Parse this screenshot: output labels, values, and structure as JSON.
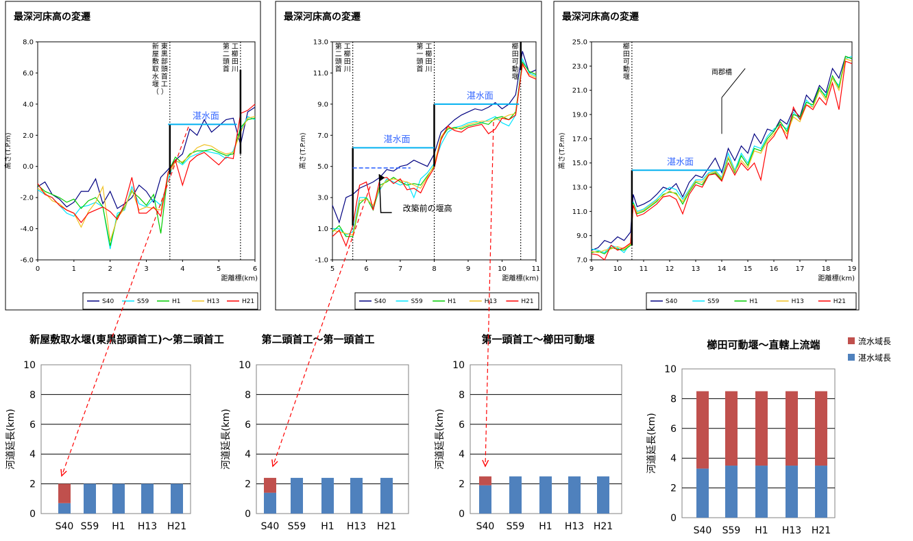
{
  "line_charts": {
    "legend": [
      "S40",
      "S59",
      "H1",
      "H13",
      "H21"
    ],
    "series_colors": [
      "#000080",
      "#00e5ff",
      "#00cc00",
      "#f0c020",
      "#ff0000"
    ]
  },
  "bar_charts": {
    "legend": [
      {
        "label": "流水域長",
        "color": "#c0504d"
      },
      {
        "label": "湛水域長",
        "color": "#4f81bd"
      }
    ],
    "annotation_arrow_color": "#ff0000"
  },
  "chart_data": [
    {
      "type": "line",
      "title": "最深河床高の変遷",
      "xlabel": "距離標(km)",
      "ylabel": "高さ(T.P.m)",
      "xlim": [
        0,
        6
      ],
      "ylim": [
        -6.0,
        8.0
      ],
      "xticks": [
        "0",
        "1",
        "2",
        "3",
        "4",
        "5",
        "6"
      ],
      "yticks": [
        "-6.0",
        "-4.0",
        "-2.0",
        "0.0",
        "2.0",
        "4.0",
        "6.0",
        "8.0"
      ],
      "x": [
        0,
        0.2,
        0.4,
        0.6,
        0.8,
        1.0,
        1.2,
        1.4,
        1.6,
        1.8,
        2.0,
        2.2,
        2.4,
        2.6,
        2.8,
        3.0,
        3.2,
        3.4,
        3.6,
        3.8,
        4.0,
        4.2,
        4.4,
        4.6,
        4.8,
        5.0,
        5.2,
        5.4,
        5.6,
        5.8,
        6.0
      ],
      "series": [
        {
          "name": "S40",
          "values": [
            -1.3,
            -1.0,
            -1.8,
            -2.1,
            -2.6,
            -2.3,
            -1.6,
            -1.6,
            -0.8,
            -2.4,
            -1.6,
            -2.7,
            -2.4,
            -2.0,
            -1.2,
            -1.6,
            -2.3,
            -0.7,
            -0.2,
            0.4,
            0.8,
            2.4,
            2.0,
            3.0,
            2.2,
            2.6,
            3.0,
            3.1,
            1.4,
            3.5,
            3.8
          ]
        },
        {
          "name": "S59",
          "values": [
            -1.5,
            -1.8,
            -2.0,
            -2.5,
            -3.0,
            -3.2,
            -2.6,
            -2.5,
            -2.3,
            -2.6,
            -5.3,
            -3.0,
            -2.8,
            -1.3,
            -2.4,
            -2.6,
            -2.1,
            -2.5,
            -0.8,
            0.4,
            0.1,
            0.6,
            0.8,
            1.0,
            0.9,
            0.8,
            0.5,
            1.0,
            2.3,
            3.2,
            3.0
          ]
        },
        {
          "name": "H1",
          "values": [
            -1.2,
            -1.6,
            -1.8,
            -2.0,
            -2.3,
            -2.1,
            -2.7,
            -2.2,
            -2.0,
            -2.6,
            -5.1,
            -3.2,
            -2.6,
            -1.6,
            -2.0,
            -2.5,
            -1.8,
            -4.3,
            -0.4,
            0.6,
            0.2,
            0.8,
            1.0,
            1.0,
            1.1,
            0.9,
            0.7,
            0.8,
            2.5,
            3.0,
            3.1
          ]
        },
        {
          "name": "H13",
          "values": [
            -1.4,
            -1.7,
            -2.2,
            -2.4,
            -2.8,
            -3.0,
            -3.9,
            -2.9,
            -2.3,
            -1.3,
            -4.8,
            -3.3,
            -2.7,
            -1.5,
            -2.8,
            -2.6,
            -2.7,
            -2.8,
            -0.6,
            0.3,
            0.3,
            0.7,
            1.2,
            1.4,
            1.3,
            1.0,
            0.8,
            0.9,
            2.2,
            3.1,
            3.2
          ]
        },
        {
          "name": "H21",
          "values": [
            -1.1,
            -1.8,
            -2.0,
            -2.5,
            -2.8,
            -3.0,
            -3.6,
            -3.0,
            -2.8,
            -2.6,
            -2.9,
            -3.4,
            -2.4,
            -0.7,
            -3.0,
            -3.0,
            -2.6,
            -3.2,
            -0.4,
            0.4,
            -1.2,
            0.3,
            0.7,
            0.9,
            0.5,
            0.1,
            0.6,
            0.5,
            3.4,
            3.6,
            4.0
          ]
        }
      ],
      "water_level": {
        "label": "湛水面",
        "x_start": 3.6,
        "x_end": 5.5,
        "y": 2.7
      },
      "weirs": [
        {
          "label": [
            "新",
            "屋",
            "敷",
            "取",
            "水",
            "堰",
            "（",
            "東",
            "黒",
            "部",
            "頭",
            "首",
            "工",
            "）"
          ],
          "x": 3.65,
          "y_bottom": -0.5,
          "y_top": 2.7
        },
        {
          "label": [
            "第",
            "二",
            "頭",
            "首",
            "工",
            "櫛",
            "田",
            "川"
          ],
          "x": 5.6,
          "y_bottom": 0.8,
          "y_top": 6.2
        }
      ]
    },
    {
      "type": "line",
      "title": "最深河床高の変遷",
      "xlabel": "距離標(km)",
      "ylabel": "高さ(T.P.m)",
      "xlim": [
        5,
        11
      ],
      "ylim": [
        -1.0,
        13.0
      ],
      "xticks": [
        "5",
        "6",
        "7",
        "8",
        "9",
        "10",
        "11"
      ],
      "yticks": [
        "-1.0",
        "1.0",
        "3.0",
        "5.0",
        "7.0",
        "9.0",
        "11.0",
        "13.0"
      ],
      "x": [
        5.0,
        5.2,
        5.4,
        5.6,
        5.8,
        6.0,
        6.2,
        6.4,
        6.6,
        6.8,
        7.0,
        7.2,
        7.4,
        7.6,
        7.8,
        8.0,
        8.2,
        8.4,
        8.6,
        8.8,
        9.0,
        9.2,
        9.4,
        9.6,
        9.8,
        10.0,
        10.2,
        10.4,
        10.6,
        10.8,
        11.0
      ],
      "series": [
        {
          "name": "S40",
          "values": [
            2.5,
            1.4,
            3.0,
            3.2,
            3.6,
            3.8,
            4.0,
            4.3,
            4.8,
            4.7,
            5.0,
            5.1,
            5.4,
            5.2,
            5.0,
            5.8,
            7.2,
            7.6,
            8.0,
            8.3,
            8.5,
            8.7,
            8.6,
            8.8,
            9.1,
            8.7,
            9.0,
            9.6,
            12.4,
            11.0,
            11.2
          ]
        },
        {
          "name": "S59",
          "values": [
            1.0,
            1.0,
            0.6,
            0.8,
            3.0,
            3.0,
            2.4,
            3.5,
            4.2,
            4.0,
            3.8,
            4.0,
            3.0,
            4.2,
            4.6,
            5.2,
            6.4,
            7.2,
            7.5,
            7.6,
            7.8,
            7.9,
            7.8,
            8.0,
            8.2,
            7.8,
            7.6,
            8.3,
            11.9,
            11.0,
            10.8
          ]
        },
        {
          "name": "H1",
          "values": [
            0.8,
            1.2,
            0.5,
            0.5,
            2.6,
            3.0,
            2.2,
            3.8,
            4.0,
            4.3,
            4.0,
            3.8,
            3.9,
            3.8,
            4.4,
            5.0,
            6.8,
            7.4,
            7.5,
            7.4,
            7.6,
            7.7,
            7.8,
            7.7,
            8.1,
            8.2,
            8.0,
            8.5,
            11.7,
            11.1,
            10.9
          ]
        },
        {
          "name": "H13",
          "values": [
            0.9,
            0.8,
            0.7,
            0.6,
            2.8,
            2.9,
            2.5,
            3.6,
            4.1,
            4.2,
            4.1,
            4.0,
            3.8,
            3.6,
            4.3,
            5.1,
            6.9,
            7.5,
            7.4,
            7.5,
            7.7,
            7.8,
            7.9,
            7.9,
            8.0,
            8.1,
            8.3,
            8.4,
            11.5,
            10.9,
            10.7
          ]
        },
        {
          "name": "H21",
          "values": [
            0.5,
            0.9,
            -0.1,
            1.2,
            3.8,
            4.0,
            2.2,
            4.2,
            4.3,
            3.9,
            4.2,
            3.5,
            3.6,
            3.3,
            4.2,
            4.9,
            6.7,
            7.6,
            7.3,
            7.2,
            7.5,
            7.6,
            7.7,
            7.1,
            7.4,
            8.1,
            8.0,
            8.3,
            11.6,
            10.8,
            10.6
          ]
        }
      ],
      "water_level": {
        "label": "湛水面",
        "x_start": 5.6,
        "x_end": 8.0,
        "y": 6.2
      },
      "water_level_2": {
        "label": "湛水面",
        "x_start": 8.0,
        "x_end": 10.5,
        "y": 9.0
      },
      "old_weir_level": {
        "x_start": 5.6,
        "x_end": 7.3,
        "y": 4.9
      },
      "old_weir_label": "改築前の堰高",
      "weirs": [
        {
          "label": [
            "第",
            "二",
            "頭",
            "首",
            "工",
            "櫛",
            "田",
            "川"
          ],
          "x": 5.6,
          "y_bottom": 1.2,
          "y_top": 6.2
        },
        {
          "label": [
            "第",
            "一",
            "頭",
            "首",
            "工",
            "櫛",
            "田",
            "川"
          ],
          "x": 8.0,
          "y_bottom": 5.0,
          "y_top": 9.0
        },
        {
          "label": [
            "櫛",
            "田",
            "可",
            "動",
            "堰"
          ],
          "x": 10.55,
          "y_bottom": 11.2,
          "y_top": 13.0
        }
      ]
    },
    {
      "type": "line",
      "title": "最深河床高の変遷",
      "xlabel": "距離標(km)",
      "ylabel": "高さ(T.P.m)",
      "xlim": [
        9,
        19
      ],
      "ylim": [
        7.0,
        25.0
      ],
      "xticks": [
        "9",
        "10",
        "11",
        "12",
        "13",
        "14",
        "15",
        "16",
        "17",
        "18",
        "19"
      ],
      "yticks": [
        "7.0",
        "9.0",
        "11.0",
        "13.0",
        "15.0",
        "17.0",
        "19.0",
        "21.0",
        "23.0",
        "25.0"
      ],
      "x": [
        9.0,
        9.25,
        9.5,
        9.75,
        10.0,
        10.25,
        10.5,
        10.6,
        10.75,
        11.0,
        11.25,
        11.5,
        11.75,
        12.0,
        12.25,
        12.5,
        12.75,
        13.0,
        13.25,
        13.5,
        13.75,
        14.0,
        14.25,
        14.5,
        14.75,
        15.0,
        15.25,
        15.5,
        15.75,
        16.0,
        16.25,
        16.5,
        16.75,
        17.0,
        17.25,
        17.5,
        17.75,
        18.0,
        18.25,
        18.5,
        18.75,
        19.0
      ],
      "series": [
        {
          "name": "S40",
          "values": [
            7.8,
            8.0,
            8.6,
            8.4,
            8.9,
            8.6,
            9.3,
            12.4,
            11.4,
            11.6,
            11.9,
            12.4,
            13.0,
            12.8,
            13.3,
            12.2,
            13.4,
            14.0,
            13.8,
            14.6,
            15.4,
            14.2,
            16.2,
            15.2,
            16.4,
            15.8,
            17.4,
            16.6,
            17.8,
            17.6,
            18.6,
            18.2,
            19.4,
            18.8,
            20.6,
            20.0,
            21.4,
            20.8,
            22.8,
            22.0,
            23.8,
            23.6
          ]
        },
        {
          "name": "S59",
          "values": [
            7.9,
            7.8,
            7.6,
            8.2,
            8.0,
            7.6,
            8.4,
            11.8,
            11.0,
            11.2,
            11.6,
            12.0,
            12.6,
            13.0,
            12.8,
            12.0,
            12.8,
            13.6,
            13.6,
            14.2,
            14.4,
            13.8,
            15.8,
            14.4,
            15.8,
            15.0,
            16.4,
            16.2,
            17.2,
            17.8,
            18.2,
            17.8,
            19.2,
            18.6,
            20.2,
            19.6,
            21.0,
            20.6,
            22.0,
            21.4,
            23.6,
            23.8
          ]
        },
        {
          "name": "H1",
          "values": [
            7.6,
            7.7,
            7.5,
            8.0,
            7.9,
            7.8,
            8.2,
            11.7,
            10.8,
            11.0,
            11.4,
            11.8,
            12.4,
            12.6,
            12.5,
            11.6,
            12.6,
            13.4,
            13.2,
            14.0,
            14.2,
            13.6,
            15.4,
            14.2,
            15.6,
            14.8,
            16.2,
            16.0,
            17.0,
            17.6,
            18.4,
            17.6,
            19.0,
            18.8,
            20.0,
            19.8,
            21.2,
            20.4,
            22.2,
            21.2,
            23.8,
            23.6
          ]
        },
        {
          "name": "H13",
          "values": [
            7.7,
            7.6,
            7.8,
            7.9,
            8.1,
            7.9,
            8.3,
            11.6,
            10.9,
            11.1,
            11.5,
            11.9,
            12.3,
            12.7,
            12.4,
            11.8,
            12.7,
            13.5,
            13.4,
            14.1,
            14.3,
            13.7,
            15.5,
            14.3,
            15.2,
            14.6,
            16.0,
            15.8,
            16.8,
            17.4,
            18.0,
            17.4,
            18.8,
            18.4,
            19.8,
            19.6,
            21.0,
            20.2,
            22.0,
            21.0,
            23.6,
            23.4
          ]
        },
        {
          "name": "H21",
          "values": [
            7.5,
            7.4,
            7.0,
            8.2,
            7.8,
            8.0,
            8.4,
            11.5,
            10.6,
            10.8,
            11.2,
            11.6,
            12.2,
            12.3,
            12.0,
            10.8,
            12.4,
            13.2,
            13.0,
            14.0,
            14.1,
            13.5,
            15.0,
            14.0,
            15.0,
            14.4,
            15.0,
            13.6,
            16.6,
            17.2,
            18.2,
            17.0,
            19.6,
            18.6,
            19.8,
            19.4,
            20.4,
            19.8,
            21.6,
            19.4,
            23.4,
            23.2
          ]
        }
      ],
      "water_level": {
        "label": "湛水面",
        "x_start": 10.55,
        "x_end": 14.0,
        "y": 14.4
      },
      "bridge_label": "両郡橋",
      "weirs": [
        {
          "label": [
            "櫛",
            "田",
            "可",
            "動",
            "堰"
          ],
          "x": 10.55,
          "y_bottom": 8.2,
          "y_top": 14.4
        }
      ]
    },
    {
      "type": "bar",
      "title": "新屋敷取水堰(東黒部頭首工)～第二頭首工",
      "ylabel": "河道延長(km)",
      "ylim": [
        0,
        10
      ],
      "yticks": [
        "0",
        "2",
        "4",
        "6",
        "8",
        "10"
      ],
      "categories": [
        "S40",
        "S59",
        "H1",
        "H13",
        "H21"
      ],
      "stacked": true,
      "series": [
        {
          "name": "湛水域長",
          "values": [
            0.7,
            2.0,
            2.0,
            2.0,
            2.0
          ]
        },
        {
          "name": "流水域長",
          "values": [
            1.3,
            0.0,
            0.0,
            0.0,
            0.0
          ]
        }
      ]
    },
    {
      "type": "bar",
      "title": "第二頭首工～第一頭首工",
      "ylabel": "河道延長(km)",
      "ylim": [
        0,
        10
      ],
      "yticks": [
        "0",
        "2",
        "4",
        "6",
        "8",
        "10"
      ],
      "categories": [
        "S40",
        "S59",
        "H1",
        "H13",
        "H21"
      ],
      "stacked": true,
      "series": [
        {
          "name": "湛水域長",
          "values": [
            1.4,
            2.4,
            2.4,
            2.4,
            2.4
          ]
        },
        {
          "name": "流水域長",
          "values": [
            1.0,
            0.0,
            0.0,
            0.0,
            0.0
          ]
        }
      ]
    },
    {
      "type": "bar",
      "title": "第一頭首工～櫛田可動堰",
      "ylabel": "河道延長(km)",
      "ylim": [
        0,
        10
      ],
      "yticks": [
        "0",
        "2",
        "4",
        "6",
        "8",
        "10"
      ],
      "categories": [
        "S40",
        "S59",
        "H1",
        "H13",
        "H21"
      ],
      "stacked": true,
      "series": [
        {
          "name": "湛水域長",
          "values": [
            1.9,
            2.5,
            2.5,
            2.5,
            2.5
          ]
        },
        {
          "name": "流水域長",
          "values": [
            0.6,
            0.0,
            0.0,
            0.0,
            0.0
          ]
        }
      ]
    },
    {
      "type": "bar",
      "title": "櫛田可動堰～直轄上流端",
      "ylabel": "河道延長(km)",
      "ylim": [
        0,
        10
      ],
      "yticks": [
        "0",
        "2",
        "4",
        "6",
        "8",
        "10"
      ],
      "categories": [
        "S40",
        "S59",
        "H1",
        "H13",
        "H21"
      ],
      "stacked": true,
      "series": [
        {
          "name": "湛水域長",
          "values": [
            3.3,
            3.5,
            3.5,
            3.5,
            3.5
          ]
        },
        {
          "name": "流水域長",
          "values": [
            5.2,
            5.0,
            5.0,
            5.0,
            5.0
          ]
        }
      ]
    }
  ]
}
